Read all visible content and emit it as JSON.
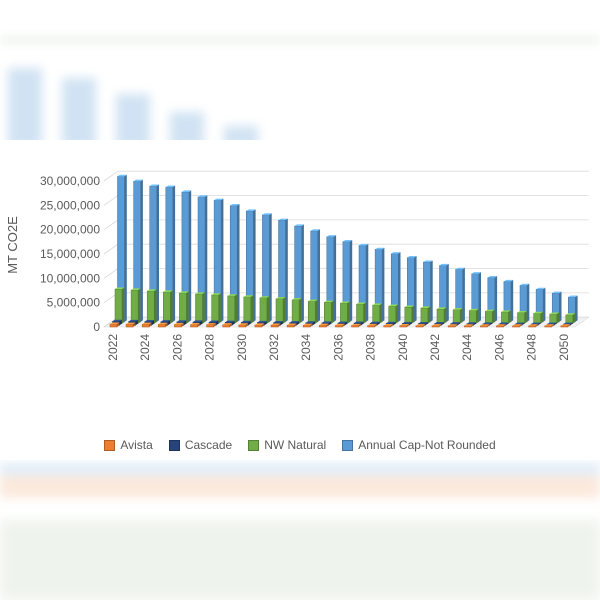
{
  "chart_data": {
    "type": "bar",
    "style": "3d-clustered-column",
    "ylabel": "MT CO2E",
    "ylim": [
      0,
      30000000
    ],
    "yticks": [
      "0",
      "5,000,000",
      "10,000,000",
      "15,000,000",
      "20,000,000",
      "25,000,000",
      "30,000,000"
    ],
    "ytick_values": [
      0,
      5000000,
      10000000,
      15000000,
      20000000,
      25000000,
      30000000
    ],
    "categories": [
      2022,
      2023,
      2024,
      2025,
      2026,
      2027,
      2028,
      2029,
      2030,
      2031,
      2032,
      2033,
      2034,
      2035,
      2036,
      2037,
      2038,
      2039,
      2040,
      2041,
      2042,
      2043,
      2044,
      2045,
      2046,
      2047,
      2048,
      2049,
      2050
    ],
    "x_tick_labels": [
      "2022",
      "2024",
      "2026",
      "2028",
      "2030",
      "2032",
      "2034",
      "2036",
      "2038",
      "2040",
      "2042",
      "2044",
      "2046",
      "2048",
      "2050"
    ],
    "grid": true,
    "legend_position": "bottom",
    "series": [
      {
        "name": "Avista",
        "color": "#ed7d31",
        "values": [
          600000,
          580000,
          560000,
          540000,
          520000,
          500000,
          480000,
          460000,
          440000,
          420000,
          400000,
          385000,
          370000,
          355000,
          340000,
          325000,
          310000,
          295000,
          280000,
          265000,
          250000,
          235000,
          220000,
          205000,
          190000,
          175000,
          160000,
          145000,
          130000
        ]
      },
      {
        "name": "Cascade",
        "color": "#264478",
        "values": [
          800000,
          775000,
          750000,
          725000,
          700000,
          675000,
          650000,
          625000,
          600000,
          575000,
          550000,
          525000,
          500000,
          480000,
          460000,
          440000,
          420000,
          400000,
          380000,
          360000,
          340000,
          320000,
          300000,
          280000,
          260000,
          240000,
          220000,
          200000,
          180000
        ]
      },
      {
        "name": "NW Natural",
        "color": "#70ad47",
        "values": [
          7100000,
          6900000,
          6700000,
          6500000,
          6300000,
          6100000,
          5900000,
          5700000,
          5500000,
          5300000,
          5100000,
          4900000,
          4600000,
          4400000,
          4200000,
          4000000,
          3800000,
          3600000,
          3400000,
          3200000,
          3000000,
          2850000,
          2700000,
          2550000,
          2400000,
          2250000,
          2100000,
          1950000,
          1800000
        ]
      },
      {
        "name": "Annual Cap-Not Rounded",
        "color": "#5b9bd5",
        "values": [
          29900000,
          28900000,
          27900000,
          27700000,
          26700000,
          25700000,
          25000000,
          23900000,
          22800000,
          22000000,
          20900000,
          19700000,
          18700000,
          17500000,
          16500000,
          15700000,
          14900000,
          14000000,
          13200000,
          12300000,
          11600000,
          10800000,
          9900000,
          9100000,
          8300000,
          7500000,
          6700000,
          5900000,
          5100000
        ]
      }
    ]
  }
}
